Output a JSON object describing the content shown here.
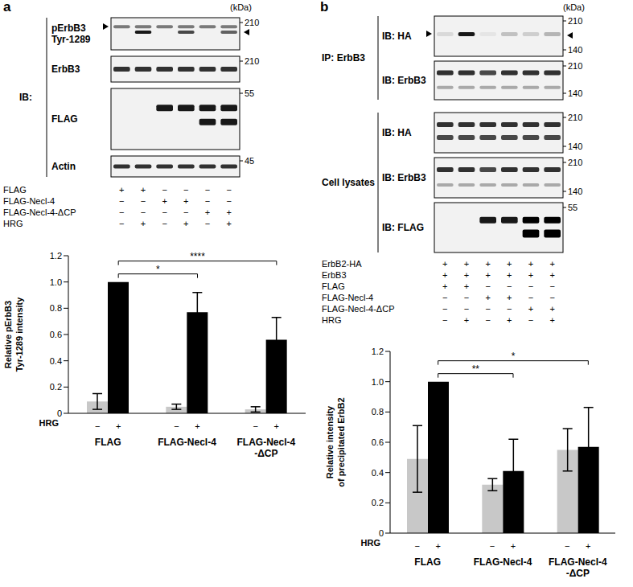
{
  "panels": {
    "a": {
      "label": "a",
      "kda_label": "(kDa)",
      "ib_label": "IB:",
      "blots": [
        {
          "name": "pErbB3\nTyr-1289",
          "markers": [
            210
          ]
        },
        {
          "name": "ErbB3",
          "markers": [
            210
          ]
        },
        {
          "name": "FLAG",
          "markers": [
            55
          ]
        },
        {
          "name": "Actin",
          "markers": [
            45
          ]
        }
      ],
      "treatments": [
        {
          "name": "FLAG",
          "signs": [
            "+",
            "+",
            "−",
            "−",
            "−",
            "−"
          ]
        },
        {
          "name": "FLAG-Necl-4",
          "signs": [
            "−",
            "−",
            "+",
            "+",
            "−",
            "−"
          ]
        },
        {
          "name": "FLAG-Necl-4-ΔCP",
          "signs": [
            "−",
            "−",
            "−",
            "−",
            "+",
            "+"
          ]
        },
        {
          "name": "HRG",
          "signs": [
            "−",
            "+",
            "−",
            "+",
            "−",
            "+"
          ]
        }
      ]
    },
    "b": {
      "label": "b",
      "kda_label": "(kDa)",
      "groups": [
        {
          "name": "IP: ErbB3",
          "blots": [
            {
              "name": "IB: HA",
              "markers": [
                210,
                140
              ]
            },
            {
              "name": "IB: ErbB3",
              "markers": [
                210,
                140
              ]
            }
          ]
        },
        {
          "name": "Cell lysates",
          "blots": [
            {
              "name": "IB: HA",
              "markers": [
                210,
                140
              ]
            },
            {
              "name": "IB: ErbB3",
              "markers": [
                210,
                140
              ]
            },
            {
              "name": "IB: FLAG",
              "markers": [
                55
              ]
            }
          ]
        }
      ],
      "treatments": [
        {
          "name": "ErbB2-HA",
          "signs": [
            "+",
            "+",
            "+",
            "+",
            "+",
            "+"
          ]
        },
        {
          "name": "ErbB3",
          "signs": [
            "+",
            "+",
            "+",
            "+",
            "+",
            "+"
          ]
        },
        {
          "name": "FLAG",
          "signs": [
            "+",
            "+",
            "−",
            "−",
            "−",
            "−"
          ]
        },
        {
          "name": "FLAG-Necl-4",
          "signs": [
            "−",
            "−",
            "+",
            "+",
            "−",
            "−"
          ]
        },
        {
          "name": "FLAG-Necl-4-ΔCP",
          "signs": [
            "−",
            "−",
            "−",
            "−",
            "+",
            "+"
          ]
        },
        {
          "name": "HRG",
          "signs": [
            "−",
            "+",
            "−",
            "+",
            "−",
            "+"
          ]
        }
      ]
    }
  },
  "chart_data": [
    {
      "type": "bar",
      "y_label": "Relative pErbB3\nTyr-1289 intensity",
      "x_row_label": "HRG",
      "categories": [
        "FLAG",
        "FLAG-Necl-4",
        "FLAG-Necl-4\n-ΔCP"
      ],
      "series": [
        {
          "name": "−",
          "color": "#c8c8c8",
          "values": [
            0.09,
            0.05,
            0.03
          ],
          "errors": [
            0.06,
            0.02,
            0.02
          ]
        },
        {
          "name": "+",
          "color": "#000000",
          "values": [
            1,
            0.77,
            0.56
          ],
          "errors": [
            0,
            0.15,
            0.17
          ]
        }
      ],
      "ylim": [
        0,
        1.2
      ],
      "yticks": [
        0,
        0.2,
        0.4,
        0.6,
        0.8,
        {
          "value": 1,
          "label": "1.0"
        },
        1.2
      ],
      "grid": false,
      "annotations": [
        {
          "text": "*",
          "between": [
            "FLAG",
            "FLAG-Necl-4"
          ],
          "series": "+"
        },
        {
          "text": "****",
          "between": [
            "FLAG",
            "FLAG-Necl-4\n-ΔCP"
          ],
          "series": "+"
        }
      ]
    },
    {
      "type": "bar",
      "y_label": "Relative intensity\nof precipitated ErbB2",
      "x_row_label": "HRG",
      "categories": [
        "FLAG",
        "FLAG-Necl-4",
        "FLAG-Necl-4\n-ΔCP"
      ],
      "series": [
        {
          "name": "−",
          "color": "#c8c8c8",
          "values": [
            0.49,
            0.32,
            0.55
          ],
          "errors": [
            0.22,
            0.04,
            0.14
          ]
        },
        {
          "name": "+",
          "color": "#000000",
          "values": [
            1,
            0.41,
            0.57
          ],
          "errors": [
            0,
            0.21,
            0.26
          ]
        }
      ],
      "ylim": [
        0,
        1.2
      ],
      "yticks": [
        0,
        0.2,
        0.4,
        0.6,
        0.8,
        {
          "value": 1,
          "label": "1.0"
        },
        1.2
      ],
      "grid": false,
      "annotations": [
        {
          "text": "**",
          "between": [
            "FLAG",
            "FLAG-Necl-4"
          ],
          "series": "+"
        },
        {
          "text": "*",
          "between": [
            "FLAG",
            "FLAG-Necl-4\n-ΔCP"
          ],
          "series": "+"
        }
      ]
    }
  ]
}
